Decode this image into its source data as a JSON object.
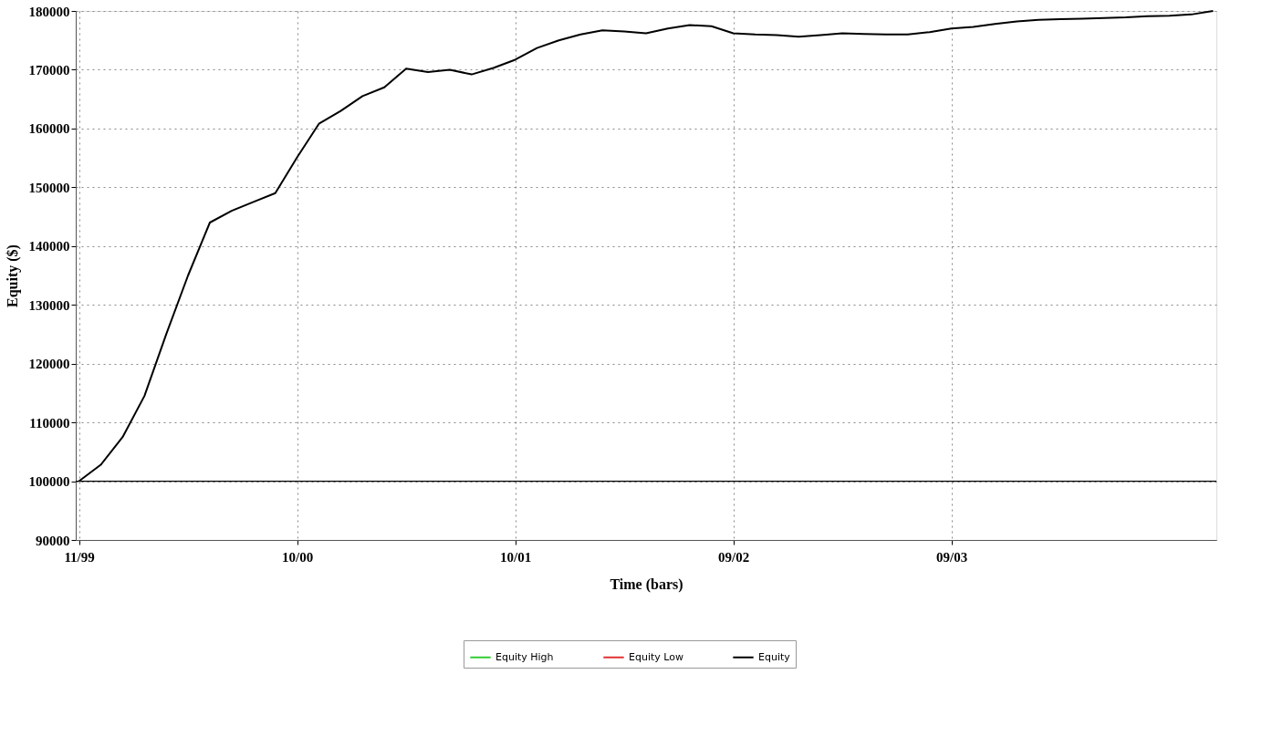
{
  "chart_data": {
    "type": "line",
    "xlabel": "Time (bars)",
    "ylabel": "Equity ($)",
    "categories": [
      "11/99",
      null,
      null,
      null,
      null,
      null,
      null,
      null,
      null,
      null,
      "10/00",
      null,
      null,
      null,
      null,
      null,
      null,
      null,
      null,
      null,
      "10/01",
      null,
      null,
      null,
      null,
      null,
      null,
      null,
      null,
      null,
      "09/02",
      null,
      null,
      null,
      null,
      null,
      null,
      null,
      null,
      null,
      "09/03",
      null,
      null,
      null,
      null,
      null,
      null,
      null,
      null,
      null,
      null,
      null,
      null
    ],
    "series": [
      {
        "name": "Equity High",
        "color": "#33cc33",
        "values": [
          null,
          null,
          null,
          null,
          null,
          null,
          null,
          null,
          null,
          null,
          null,
          null,
          null,
          null,
          null,
          null,
          null,
          null,
          null,
          null,
          null,
          null,
          null,
          null,
          null,
          null,
          null,
          null,
          null,
          null,
          null,
          null,
          null,
          null,
          null,
          null,
          null,
          null,
          null,
          null,
          null,
          null,
          null,
          null,
          null,
          null,
          null,
          null,
          null,
          null,
          null,
          null,
          null
        ]
      },
      {
        "name": "Equity Low",
        "color": "#e03030",
        "values": [
          null,
          null,
          null,
          null,
          null,
          null,
          null,
          null,
          null,
          null,
          null,
          null,
          null,
          null,
          null,
          null,
          null,
          null,
          null,
          null,
          null,
          null,
          null,
          null,
          null,
          null,
          null,
          null,
          null,
          null,
          null,
          null,
          null,
          null,
          null,
          null,
          null,
          null,
          null,
          null,
          null,
          null,
          null,
          null,
          null,
          null,
          null,
          null,
          null,
          null,
          null,
          null,
          null
        ]
      },
      {
        "name": "Equity",
        "color": "#000000",
        "values": [
          100000,
          102800,
          107500,
          114500,
          125000,
          135000,
          144000,
          146000,
          147500,
          149000,
          155100,
          160800,
          163000,
          165500,
          167000,
          170200,
          169600,
          170000,
          169200,
          170300,
          171700,
          173700,
          175000,
          176000,
          176700,
          176500,
          176200,
          177000,
          177600,
          177400,
          176200,
          176000,
          175900,
          175600,
          175900,
          176200,
          176100,
          176000,
          176000,
          176400,
          177000,
          177300,
          177800,
          178200,
          178500,
          178600,
          178700,
          178800,
          178900,
          179100,
          179200,
          179400,
          180000
        ]
      }
    ],
    "ylim": [
      90000,
      180000
    ],
    "yticks": [
      90000,
      100000,
      110000,
      120000,
      130000,
      140000,
      150000,
      160000,
      170000,
      180000
    ],
    "ref_lines": [
      {
        "axis": "y",
        "value": 100000,
        "color": "#000000"
      }
    ],
    "grid": true,
    "legend": "bottom",
    "marker": "none",
    "line_style": "solid"
  }
}
